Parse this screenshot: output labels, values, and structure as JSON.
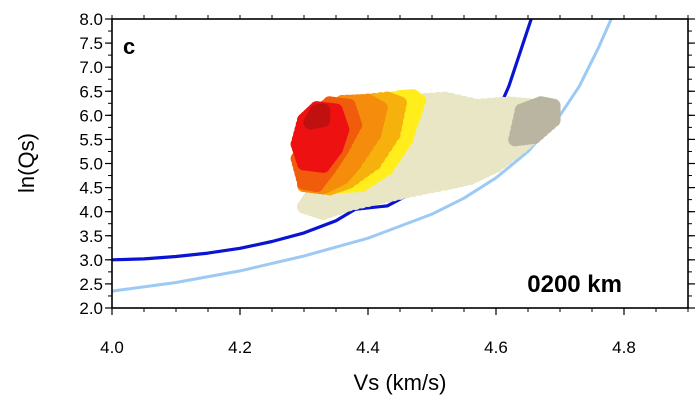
{
  "chart_data": {
    "type": "scatter",
    "panel_label": "c",
    "annotation": "0200 km",
    "xlabel": "Vs (km/s)",
    "ylabel": "ln(Qs)",
    "xlim": [
      4.0,
      4.9
    ],
    "ylim": [
      2.0,
      8.0
    ],
    "x_ticks": [
      "4.0",
      "4.2",
      "4.4",
      "4.6",
      "4.8"
    ],
    "y_ticks": [
      "2.0",
      "2.5",
      "3.0",
      "3.5",
      "4.0",
      "4.5",
      "5.0",
      "5.5",
      "6.0",
      "6.5",
      "7.0",
      "7.5",
      "8.0"
    ],
    "grid": false,
    "colors": {
      "dark_blue_curve": "#0a14d2",
      "light_blue_curve": "#9ccaf4",
      "red": "#ee1111",
      "dark_red": "#c01010",
      "orange_red": "#f05c0c",
      "orange": "#f58c0c",
      "gold": "#f7b10c",
      "yellow": "#ffee1c",
      "beige": "#e9e6c5",
      "gray_beige": "#b9b5a0"
    },
    "series": [
      {
        "type": "line",
        "color": "#0a14d2",
        "x": [
          4.0,
          4.05,
          4.1,
          4.15,
          4.2,
          4.25,
          4.3,
          4.35,
          4.38,
          4.43,
          4.47,
          4.51,
          4.55,
          4.58,
          4.6,
          4.62,
          4.64,
          4.655
        ],
        "y": [
          3.0,
          3.02,
          3.07,
          3.14,
          3.24,
          3.38,
          3.56,
          3.81,
          4.05,
          4.12,
          4.4,
          4.73,
          5.12,
          5.55,
          6.0,
          6.6,
          7.4,
          8.0
        ]
      },
      {
        "type": "line",
        "color": "#9ccaf4",
        "x": [
          4.0,
          4.1,
          4.2,
          4.3,
          4.4,
          4.5,
          4.55,
          4.6,
          4.65,
          4.7,
          4.73,
          4.76,
          4.78
        ],
        "y": [
          2.35,
          2.53,
          2.77,
          3.08,
          3.45,
          3.95,
          4.28,
          4.7,
          5.25,
          6.0,
          6.6,
          7.4,
          8.0
        ]
      },
      {
        "type": "cloud",
        "color": "#e9e6c5",
        "outline_x": [
          4.3,
          4.33,
          4.37,
          4.42,
          4.47,
          4.52,
          4.56,
          4.6,
          4.64,
          4.67,
          4.68,
          4.66,
          4.62,
          4.57,
          4.52,
          4.47,
          4.43,
          4.38,
          4.35,
          4.32
        ],
        "outline_y": [
          4.1,
          3.97,
          4.15,
          4.3,
          4.45,
          4.58,
          4.7,
          4.95,
          5.35,
          5.7,
          6.0,
          6.2,
          6.25,
          6.2,
          6.35,
          6.3,
          6.15,
          5.8,
          5.1,
          4.5
        ]
      },
      {
        "type": "cloud",
        "color": "#b9b5a0",
        "outline_x": [
          4.63,
          4.66,
          4.69,
          4.69,
          4.67,
          4.64
        ],
        "outline_y": [
          5.5,
          5.55,
          5.9,
          6.2,
          6.25,
          6.1
        ]
      },
      {
        "type": "cloud",
        "color": "#ffee1c",
        "outline_x": [
          4.32,
          4.35,
          4.39,
          4.43,
          4.46,
          4.48,
          4.47,
          4.45,
          4.4,
          4.36,
          4.33
        ],
        "outline_y": [
          4.7,
          4.52,
          4.55,
          4.9,
          5.5,
          6.3,
          6.4,
          6.38,
          6.25,
          5.95,
          5.3
        ]
      },
      {
        "type": "cloud",
        "color": "#f7b10c",
        "outline_x": [
          4.31,
          4.34,
          4.37,
          4.41,
          4.44,
          4.45,
          4.43,
          4.38,
          4.34,
          4.31
        ],
        "outline_y": [
          4.6,
          4.48,
          4.62,
          5.0,
          5.6,
          6.25,
          6.35,
          6.28,
          5.9,
          5.2
        ]
      },
      {
        "type": "cloud",
        "color": "#f58c0c",
        "outline_x": [
          4.3,
          4.33,
          4.36,
          4.38,
          4.41,
          4.42,
          4.4,
          4.36,
          4.32,
          4.3
        ],
        "outline_y": [
          4.55,
          4.5,
          4.7,
          5.0,
          5.6,
          6.15,
          6.3,
          6.28,
          5.9,
          5.2
        ]
      },
      {
        "type": "cloud",
        "color": "#f05c0c",
        "outline_x": [
          4.3,
          4.32,
          4.34,
          4.36,
          4.38,
          4.37,
          4.34,
          4.31,
          4.29
        ],
        "outline_y": [
          4.6,
          4.55,
          4.9,
          5.3,
          5.8,
          6.2,
          6.25,
          5.9,
          5.1
        ]
      },
      {
        "type": "cloud",
        "color": "#ee1111",
        "outline_x": [
          4.3,
          4.33,
          4.35,
          4.36,
          4.35,
          4.32,
          4.3,
          4.29
        ],
        "outline_y": [
          5.0,
          4.95,
          5.3,
          5.7,
          6.1,
          6.15,
          5.9,
          5.4
        ]
      },
      {
        "type": "cloud",
        "color": "#c01010",
        "outline_x": [
          4.31,
          4.33,
          4.33,
          4.32
        ],
        "outline_y": [
          5.85,
          5.9,
          6.1,
          6.08
        ]
      }
    ]
  }
}
